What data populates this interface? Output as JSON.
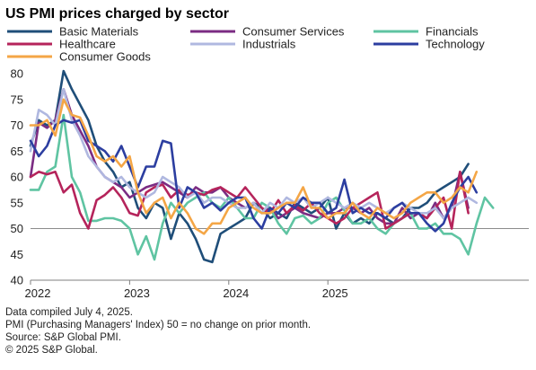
{
  "chart_data": {
    "type": "line",
    "title": "US PMI prices charged by sector",
    "ylim": [
      40,
      80
    ],
    "yticks": [
      40,
      45,
      50,
      55,
      60,
      65,
      70,
      75,
      80
    ],
    "xticks": [
      {
        "label": "2022",
        "x": 0
      },
      {
        "label": "2023",
        "x": 12
      },
      {
        "label": "2024",
        "x": 24
      },
      {
        "label": "2025",
        "x": 36
      }
    ],
    "reference_line": 50,
    "grid": false,
    "legend_position": "top",
    "series": [
      {
        "name": "Basic Materials",
        "color": "#1f4e79",
        "values": [
          66,
          71,
          70,
          71,
          80.5,
          77,
          74,
          71,
          66,
          63,
          61,
          58,
          59,
          54,
          52,
          55,
          54,
          48,
          53,
          51,
          48,
          44,
          43.5,
          49,
          50,
          51,
          52,
          55,
          54,
          52,
          53,
          52,
          55,
          54,
          53,
          54,
          56,
          50,
          53,
          51,
          52,
          51,
          53,
          52,
          51,
          52,
          54,
          54,
          55,
          57,
          58,
          59,
          60,
          62.5
        ]
      },
      {
        "name": "Consumer Services",
        "color": "#7b2c83",
        "values": [
          60,
          70.5,
          69.5,
          71,
          77,
          72,
          69,
          66,
          62,
          60,
          59,
          58,
          56,
          57,
          58,
          58.5,
          59,
          58,
          57,
          56,
          58,
          57,
          57,
          58,
          56,
          55,
          54,
          55,
          53,
          54,
          52,
          53,
          54,
          53,
          52.5,
          52,
          53,
          53,
          54,
          54,
          53,
          54,
          52,
          51,
          51,
          54,
          52,
          53,
          52,
          55,
          52,
          54,
          61,
          54
        ]
      },
      {
        "name": "Financials",
        "color": "#5fc4a2",
        "values": [
          57.5,
          57.5,
          61,
          62,
          72,
          60,
          57,
          51.5,
          51.5,
          52,
          52,
          51.5,
          50,
          45,
          48.5,
          44,
          51,
          55,
          53,
          55,
          56,
          57,
          55,
          54,
          56,
          54,
          52,
          52,
          55,
          54,
          51,
          49,
          52,
          52.5,
          51,
          52,
          55,
          56,
          53.5,
          51,
          51,
          52,
          50,
          49,
          51,
          52,
          53,
          50,
          50,
          51,
          49,
          49,
          48,
          45,
          51,
          56,
          54
        ]
      },
      {
        "name": "Healthcare",
        "color": "#b5245b",
        "values": [
          60,
          61,
          60.5,
          61,
          57,
          58.5,
          53,
          50,
          55.5,
          56.5,
          58,
          56,
          53,
          52.5,
          57,
          58,
          58.5,
          56,
          57.5,
          56.5,
          57,
          56.5,
          57.5,
          58,
          57,
          56,
          58,
          56,
          54,
          53,
          55.5,
          53,
          54.5,
          53.5,
          55,
          53,
          52,
          51,
          52,
          54,
          55,
          56,
          57,
          50,
          51,
          52,
          53,
          53,
          52,
          54,
          56,
          50,
          61,
          53
        ]
      },
      {
        "name": "Industrials",
        "color": "#b0b8e0",
        "values": [
          65,
          73,
          72,
          70,
          77,
          71,
          68,
          64,
          62,
          60,
          59,
          60,
          58,
          57,
          56,
          57,
          60,
          59,
          58,
          56,
          57,
          55,
          56,
          56,
          55,
          54,
          54,
          55,
          53,
          55,
          54,
          56,
          55,
          56,
          54,
          55,
          56,
          55,
          54,
          55,
          54,
          55,
          54,
          53,
          54,
          55,
          54,
          53,
          53,
          54,
          52,
          54,
          55,
          56,
          55
        ]
      },
      {
        "name": "Technology",
        "color": "#2c3ea0",
        "values": [
          67,
          64,
          66,
          70,
          71,
          70.5,
          71,
          67,
          66,
          65,
          63,
          66,
          62,
          58,
          62,
          62,
          67,
          66.5,
          54,
          58,
          57,
          54,
          55,
          53.5,
          55,
          56,
          56,
          52,
          50,
          54,
          53,
          55,
          54,
          56,
          55,
          55,
          53,
          54,
          59.5,
          53,
          54,
          53,
          53,
          52,
          54,
          55,
          53,
          53,
          51,
          49.5,
          51,
          55,
          58,
          60,
          57
        ]
      },
      {
        "name": "Consumer Goods",
        "color": "#f4a646",
        "values": [
          70,
          70,
          71,
          68,
          75,
          72,
          71.5,
          68,
          64,
          63,
          64,
          62,
          64,
          57,
          53,
          55,
          56,
          52,
          55,
          53,
          50,
          49,
          51,
          51,
          54,
          55,
          56,
          54,
          53,
          53,
          54,
          55,
          55,
          58,
          54,
          54,
          52,
          53,
          53,
          55,
          53,
          52,
          54,
          53,
          52,
          53,
          55,
          56,
          57,
          57,
          55,
          56,
          58,
          57,
          61
        ]
      }
    ],
    "footnotes": [
      "Data compiled July 4, 2025.",
      "PMI (Purchasing Managers' Index) 50 =  no change on prior month.",
      "Source: S&P Global PMI.",
      "© 2025 S&P Global."
    ]
  }
}
